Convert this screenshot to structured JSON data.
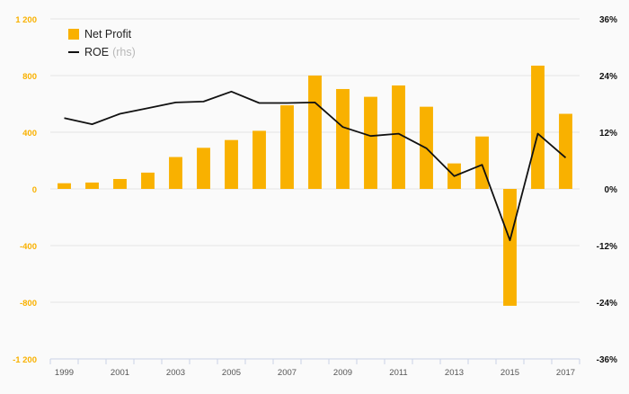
{
  "chart_data": {
    "type": "bar",
    "title": "",
    "x": [
      "1999",
      "2000",
      "2001",
      "2002",
      "2003",
      "2004",
      "2005",
      "2006",
      "2007",
      "2008",
      "2009",
      "2010",
      "2011",
      "2012",
      "2013",
      "2014",
      "2015",
      "2016",
      "2017"
    ],
    "x_tick_labels": [
      "1999",
      "2001",
      "2003",
      "2005",
      "2007",
      "2009",
      "2011",
      "2013",
      "2015",
      "2017"
    ],
    "series": [
      {
        "name": "Net Profit",
        "type": "bar",
        "axis": "left",
        "color": "#f9b100",
        "values": [
          40,
          45,
          70,
          115,
          225,
          290,
          345,
          410,
          590,
          800,
          705,
          650,
          730,
          580,
          180,
          370,
          -825,
          870,
          530
        ]
      },
      {
        "name": "ROE",
        "name_suffix": "(rhs)",
        "type": "line",
        "axis": "right",
        "color": "#111111",
        "values": [
          15,
          13.7,
          15.9,
          17.1,
          18.3,
          18.5,
          20.6,
          18.2,
          18.2,
          18.3,
          13.1,
          11.2,
          11.7,
          8.6,
          2.7,
          5.1,
          -10.9,
          11.7,
          6.6
        ]
      }
    ],
    "left_axis": {
      "ylim": [
        -1200,
        1200
      ],
      "ticks": [
        -1200,
        -800,
        -400,
        0,
        400,
        800,
        1200
      ],
      "tick_labels": [
        "-1 200",
        "-800",
        "-400",
        "0",
        "400",
        "800",
        "1 200"
      ],
      "color": "#f9b100"
    },
    "right_axis": {
      "ylim": [
        -36,
        36
      ],
      "ticks": [
        -36,
        -24,
        -12,
        0,
        12,
        24,
        36
      ],
      "tick_labels": [
        "-36%",
        "-24%",
        "-12%",
        "0%",
        "12%",
        "24%",
        "36%"
      ],
      "color": "#111111"
    },
    "grid": true,
    "legend": "top-left"
  }
}
